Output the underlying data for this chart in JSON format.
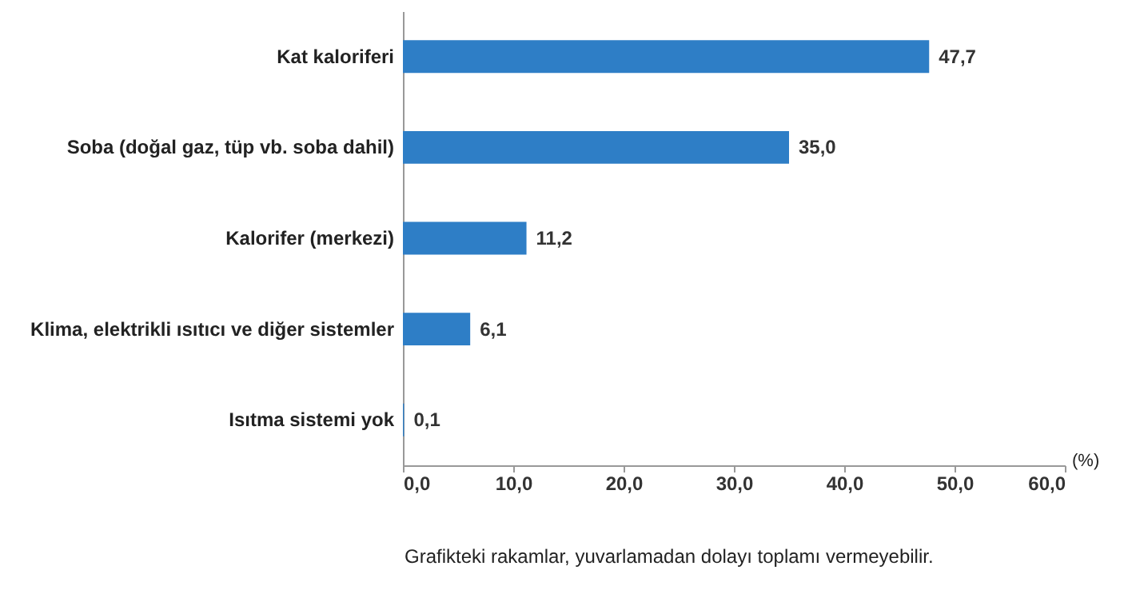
{
  "chart_data": {
    "type": "bar",
    "orientation": "horizontal",
    "categories": [
      "Kat kaloriferi",
      "Soba (doğal gaz, tüp vb. soba dahil)",
      "Kalorifer (merkezi)",
      "Klima, elektrikli ısıtıcı ve diğer sistemler",
      "Isıtma sistemi yok"
    ],
    "values": [
      47.7,
      35.0,
      11.2,
      6.1,
      0.1
    ],
    "value_labels": [
      "47,7",
      "35,0",
      "11,2",
      "6,1",
      "0,1"
    ],
    "color": "#2e7ec6",
    "xlabel": "(%)",
    "xlim": [
      0,
      60
    ],
    "xticks": [
      {
        "value": 0,
        "label": "0,0"
      },
      {
        "value": 10,
        "label": "10,0"
      },
      {
        "value": 20,
        "label": "20,0"
      },
      {
        "value": 30,
        "label": "30,0"
      },
      {
        "value": 40,
        "label": "40,0"
      },
      {
        "value": 50,
        "label": "50,0"
      },
      {
        "value": 60,
        "label": "60,0"
      }
    ],
    "grid": false,
    "annotations": [
      "Grafikteki rakamlar, yuvarlamadan dolayı toplamı vermeyebilir."
    ]
  }
}
